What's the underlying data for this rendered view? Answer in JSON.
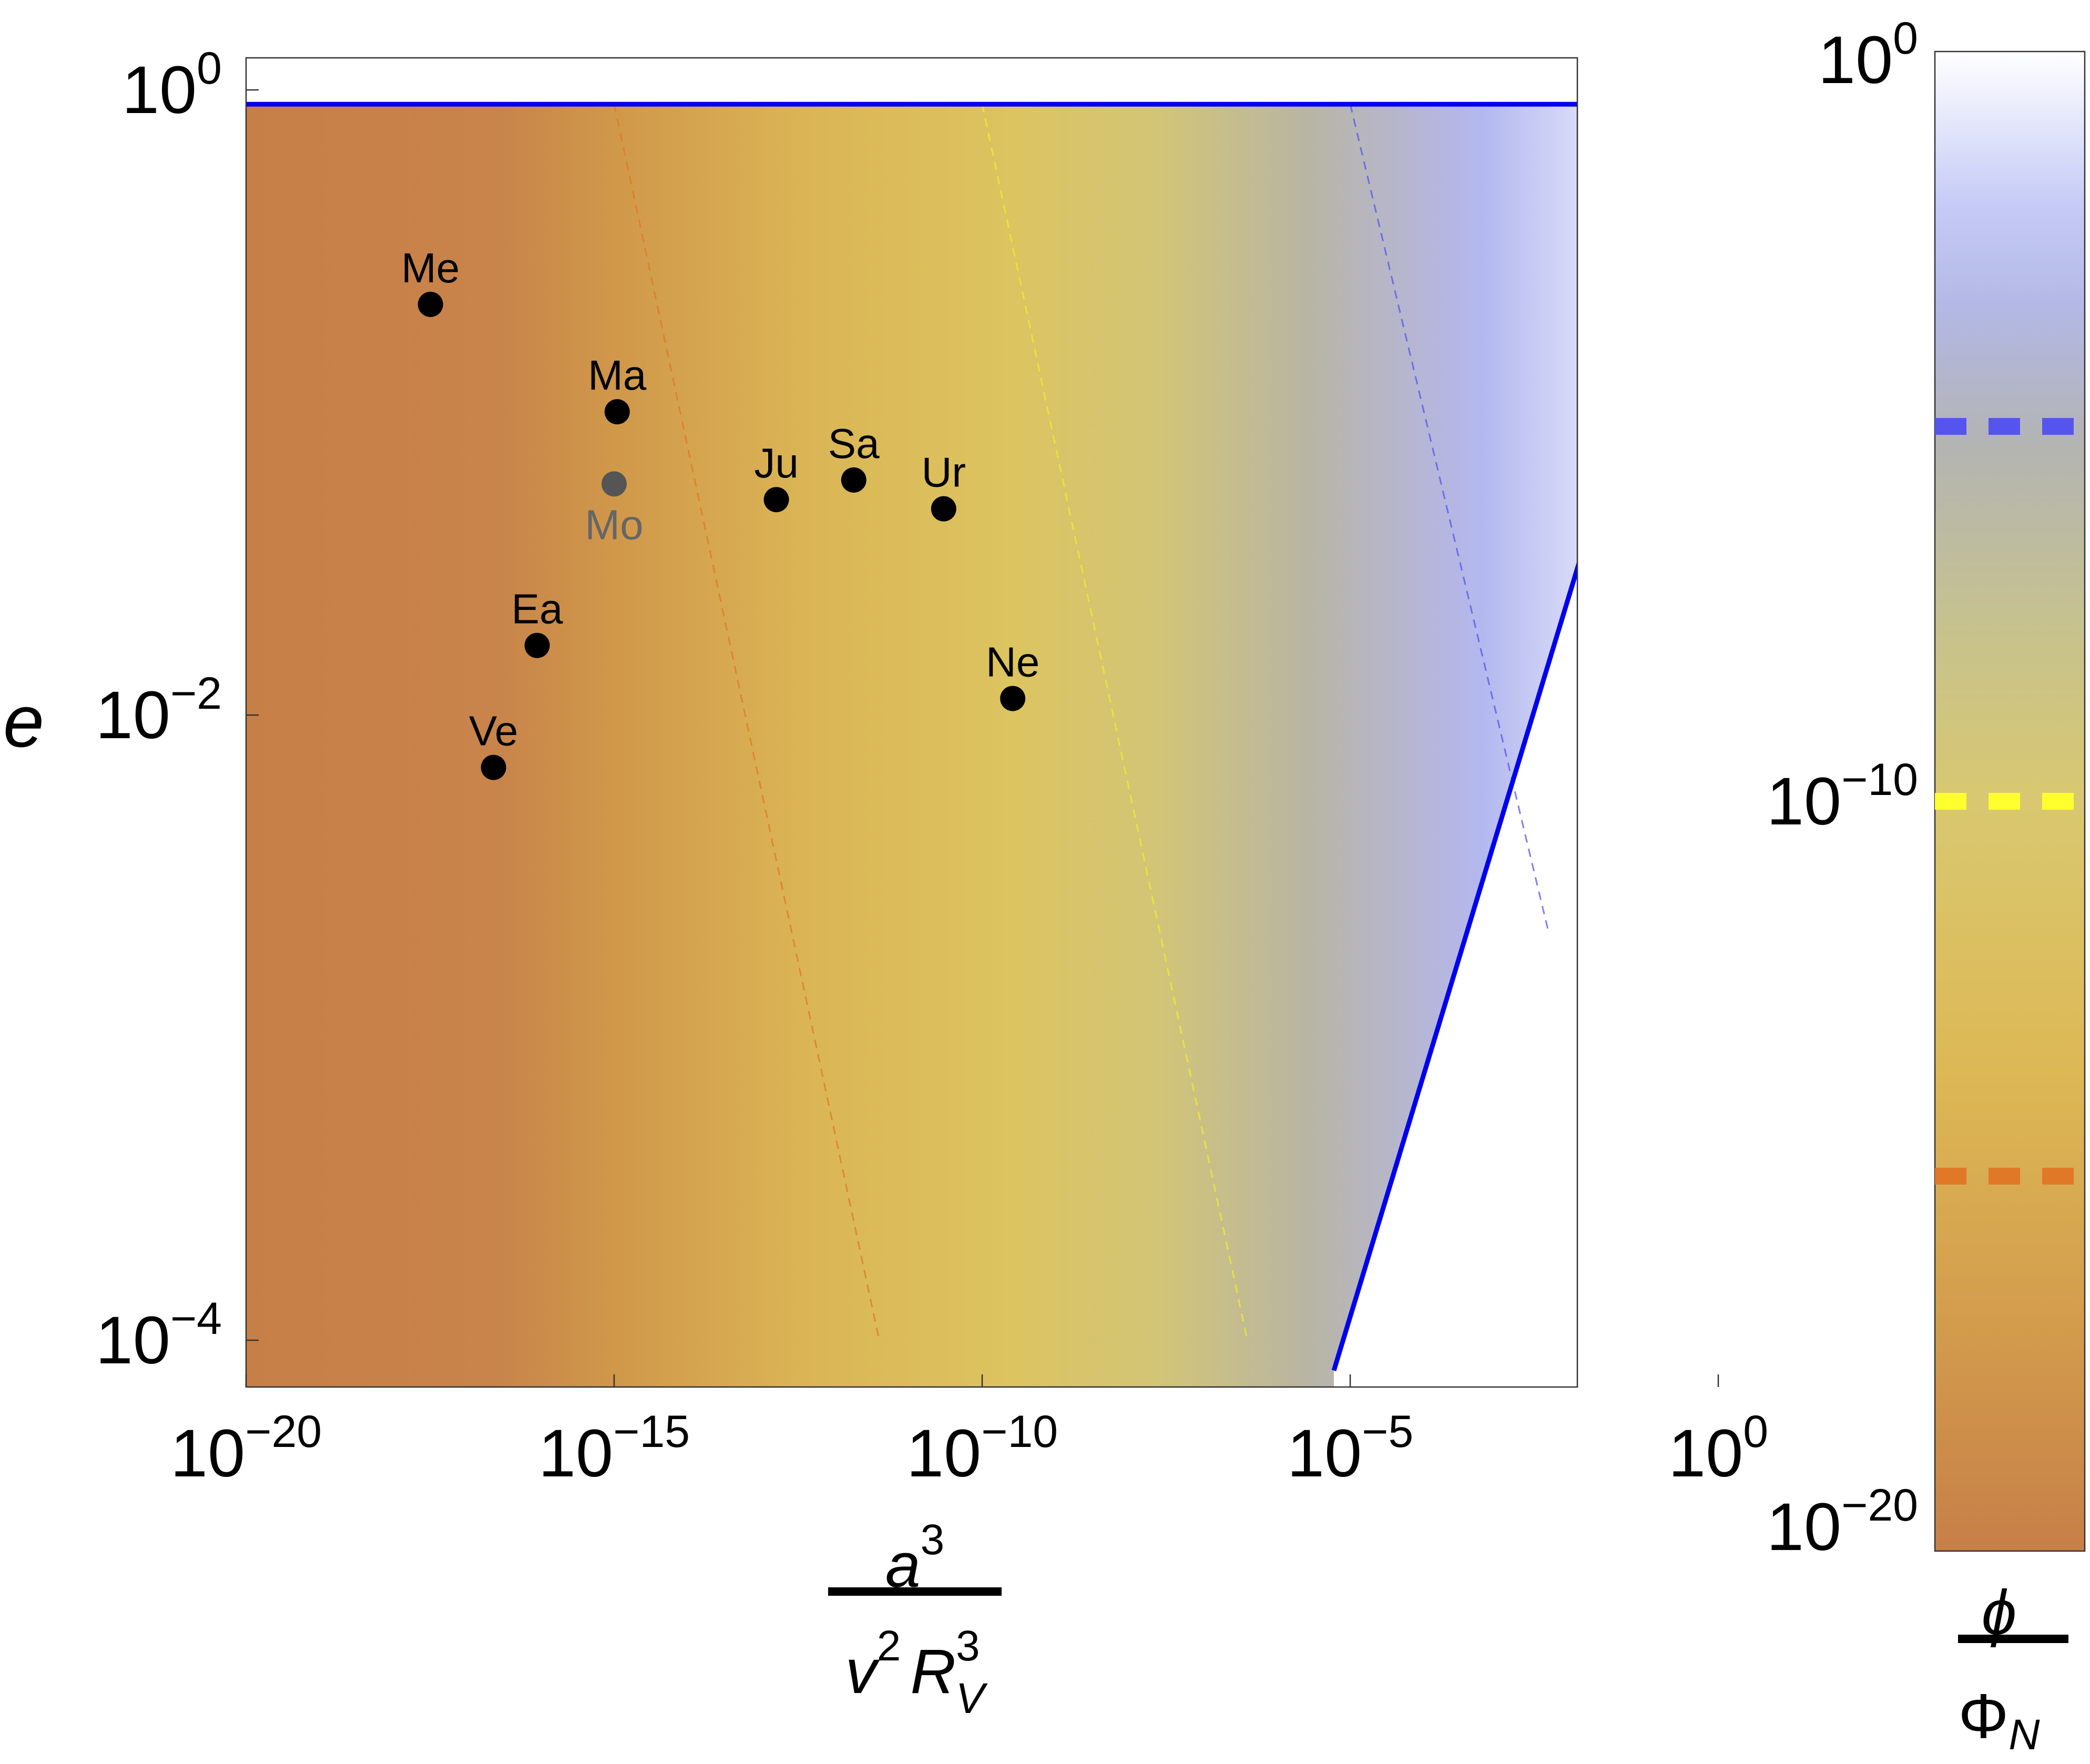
{
  "chart_data": {
    "type": "scatter",
    "x_scale": "log",
    "y_scale": "log",
    "xlim": [
      1e-20,
      10.0
    ],
    "ylim": [
      7e-05,
      1.3
    ],
    "x_ticks": [
      {
        "value": 1e-20,
        "base": "10",
        "exp": "−20"
      },
      {
        "value": 1e-15,
        "base": "10",
        "exp": "−15"
      },
      {
        "value": 1e-10,
        "base": "10",
        "exp": "−10"
      },
      {
        "value": 1e-05,
        "base": "10",
        "exp": "−5"
      },
      {
        "value": 1,
        "base": "10",
        "exp": "0"
      }
    ],
    "y_ticks": [
      {
        "value": 1,
        "base": "10",
        "exp": "0"
      },
      {
        "value": 0.01,
        "base": "10",
        "exp": "−2"
      },
      {
        "value": 0.0001,
        "base": "10",
        "exp": "−4"
      }
    ],
    "xlabel": {
      "num": "a",
      "num_sup": "3",
      "den_v": "v",
      "den_v_sup": "2",
      "den_r": "R",
      "den_r_sub": "V",
      "den_r_sup": "3"
    },
    "ylabel": "e",
    "points": [
      {
        "label": "Me",
        "x": 3.2e-18,
        "y": 0.206,
        "color": "#000000",
        "label_pos": "above"
      },
      {
        "label": "Ma",
        "x": 1.1e-15,
        "y": 0.0934,
        "color": "#000000",
        "label_pos": "above"
      },
      {
        "label": "Mo",
        "x": 1e-15,
        "y": 0.0549,
        "color": "#555555",
        "label_pos": "below"
      },
      {
        "label": "Ju",
        "x": 1.6e-13,
        "y": 0.0489,
        "color": "#000000",
        "label_pos": "above"
      },
      {
        "label": "Sa",
        "x": 1.8e-12,
        "y": 0.0565,
        "color": "#000000",
        "label_pos": "above"
      },
      {
        "label": "Ur",
        "x": 3e-11,
        "y": 0.0457,
        "color": "#000000",
        "label_pos": "above"
      },
      {
        "label": "Ea",
        "x": 9e-17,
        "y": 0.0167,
        "color": "#000000",
        "label_pos": "above"
      },
      {
        "label": "Ne",
        "x": 2.6e-10,
        "y": 0.0113,
        "color": "#000000",
        "label_pos": "above"
      },
      {
        "label": "Ve",
        "x": 2.3e-17,
        "y": 0.0068,
        "color": "#000000",
        "label_pos": "above"
      }
    ],
    "boundary": {
      "color": "#0000ee",
      "points": [
        [
          1e-20,
          0.9
        ],
        [
          1,
          0.9
        ],
        [
          6e-06,
          8e-05
        ]
      ]
    },
    "contours": [
      {
        "color": "#e07828",
        "points": [
          [
            1e-15,
            0.9
          ],
          [
            4e-12,
            0.0001
          ]
        ]
      },
      {
        "color": "#eeee30",
        "points": [
          [
            1e-10,
            0.9
          ],
          [
            4e-07,
            0.0001
          ]
        ]
      },
      {
        "color": "#5555ee",
        "points": [
          [
            1e-05,
            0.9
          ],
          [
            0.005,
            0.002
          ]
        ]
      }
    ],
    "colorbar": {
      "scale": "log",
      "range": [
        1e-20,
        1
      ],
      "ticks": [
        {
          "value": 1,
          "base": "10",
          "exp": "0"
        },
        {
          "value": 1e-10,
          "base": "10",
          "exp": "−10"
        },
        {
          "value": 1e-20,
          "base": "10",
          "exp": "−20"
        }
      ],
      "markers": [
        {
          "value": 1e-05,
          "color": "#5555ee"
        },
        {
          "value": 1e-10,
          "color": "#ffff30"
        },
        {
          "value": 1e-15,
          "color": "#e07828"
        }
      ],
      "label": {
        "num": "ϕ",
        "den": "Φ",
        "den_sub": "N"
      }
    },
    "grid": false,
    "legend": "none"
  }
}
